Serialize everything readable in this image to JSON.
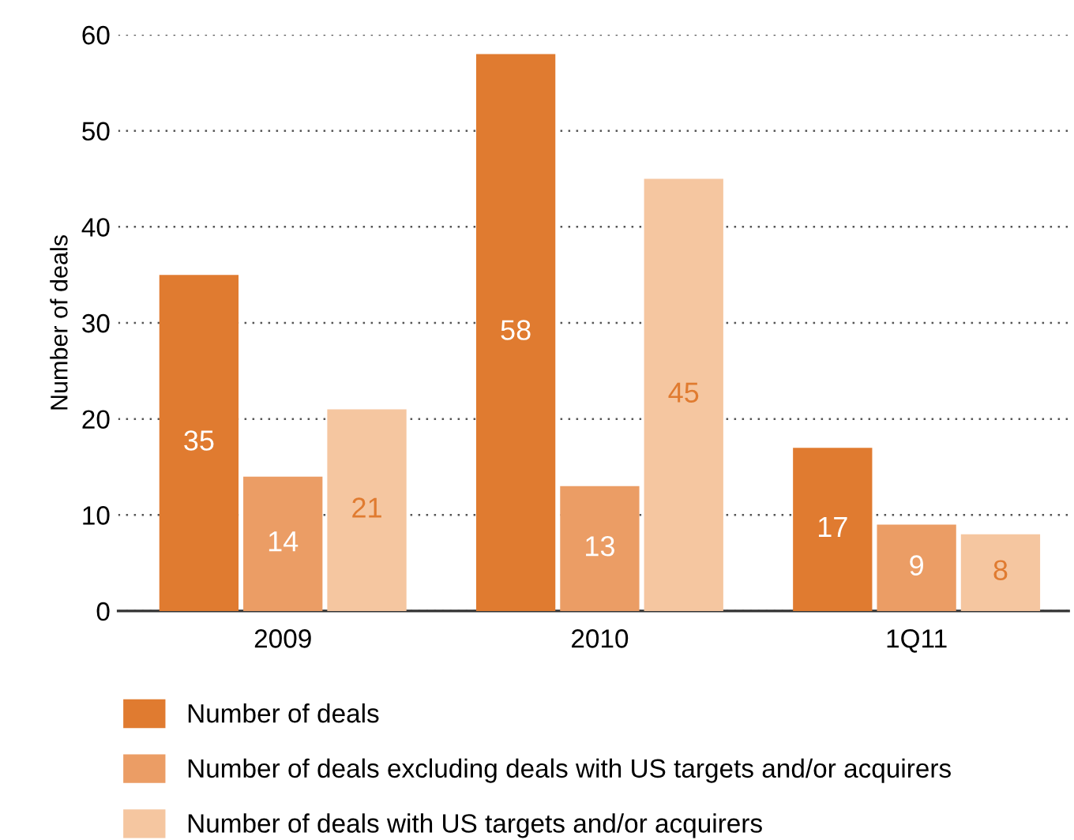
{
  "chart_data": {
    "type": "bar",
    "ylabel": "Number of deals",
    "categories": [
      "2009",
      "2010",
      "1Q11"
    ],
    "series": [
      {
        "name": "Number of deals",
        "color": "#e07b30",
        "values": [
          35,
          58,
          17
        ]
      },
      {
        "name": "Number of deals excluding deals with US targets and/or acquirers",
        "color": "#eb9d65",
        "values": [
          14,
          13,
          9
        ]
      },
      {
        "name": "Number of deals with US targets and/or acquirers",
        "color": "#f5c6a0",
        "values": [
          21,
          45,
          8
        ]
      }
    ],
    "ylim": [
      0,
      60
    ],
    "yticks": [
      0,
      10,
      20,
      30,
      40,
      50,
      60
    ],
    "grid": "y",
    "legend": "bottom",
    "data_labels": true
  }
}
